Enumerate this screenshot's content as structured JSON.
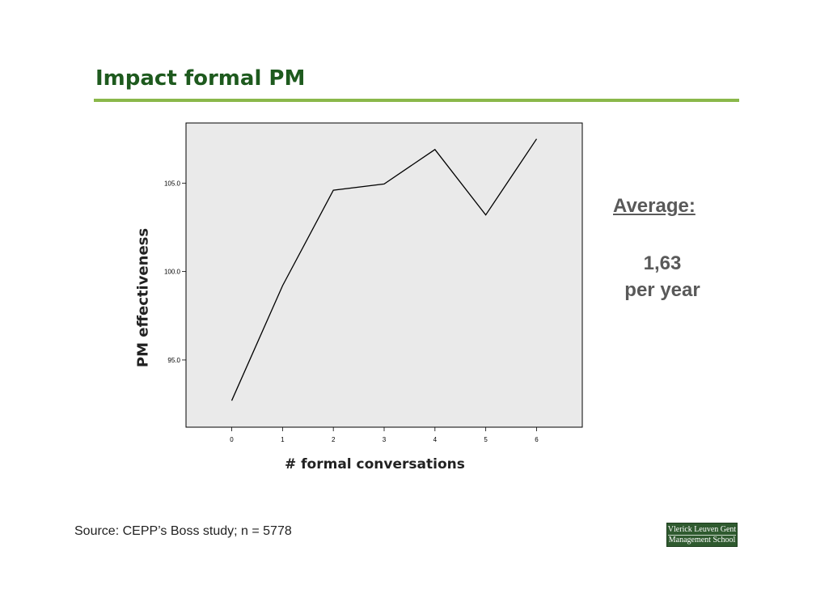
{
  "slide": {
    "title": "Impact formal PM",
    "average_heading": "Average:",
    "average_value": "1,63",
    "average_unit": "per year",
    "source": "Source: CEPP’s Boss study; n = 5778",
    "logo_line1": "Vlerick Leuven Gent",
    "logo_line2": "Management School"
  },
  "colors": {
    "title": "#1e5a1e",
    "rule": "#8ab84a",
    "plot_bg": "#eaeaea",
    "line": "#000000",
    "side_text": "#595959"
  },
  "chart_data": {
    "type": "line",
    "title": "",
    "xlabel": "# formal conversations",
    "ylabel": "PM effectiveness",
    "x": [
      0,
      1,
      2,
      3,
      4,
      5,
      6
    ],
    "values": [
      92.7,
      99.2,
      104.6,
      104.95,
      106.9,
      103.2,
      107.5
    ],
    "xticks": [
      "0",
      "1",
      "2",
      "3",
      "4",
      "5",
      "6"
    ],
    "yticks": [
      {
        "value": 95.0,
        "label": "95.0"
      },
      {
        "value": 100.0,
        "label": "100.0"
      },
      {
        "value": 105.0,
        "label": "105.0"
      }
    ],
    "xlim": [
      -0.9,
      6.9
    ],
    "ylim": [
      91.2,
      108.4
    ],
    "grid": false,
    "legend": "none"
  }
}
